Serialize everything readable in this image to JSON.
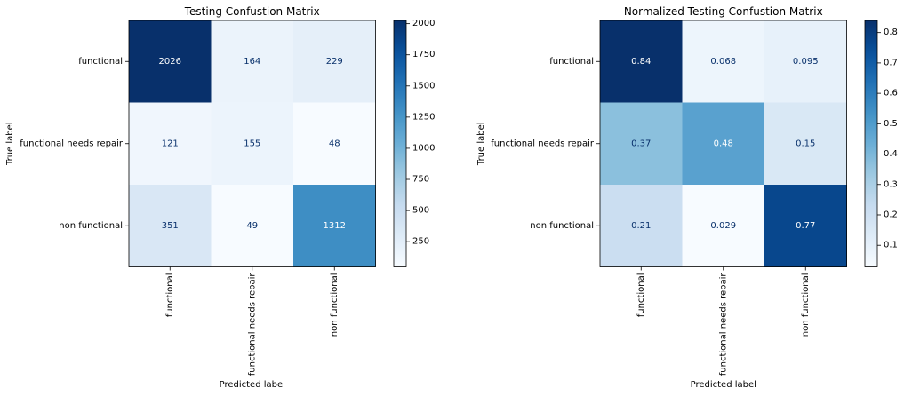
{
  "chart_data": [
    {
      "type": "heatmap",
      "title": "Testing Confustion Matrix",
      "xlabel": "Predicted label",
      "ylabel": "True label",
      "x_categories": [
        "functional",
        "functional needs repair",
        "non functional"
      ],
      "y_categories": [
        "functional",
        "functional needs repair",
        "non functional"
      ],
      "values": [
        [
          2026,
          164,
          229
        ],
        [
          121,
          155,
          48
        ],
        [
          351,
          49,
          1312
        ]
      ],
      "value_labels": [
        [
          "2026",
          "164",
          "229"
        ],
        [
          "121",
          "155",
          "48"
        ],
        [
          "351",
          "49",
          "1312"
        ]
      ],
      "colormap": "Blues",
      "color_range": [
        48,
        2026
      ],
      "colorbar_ticks": [
        250,
        500,
        750,
        1000,
        1250,
        1500,
        1750,
        2000
      ],
      "colorbar_tick_labels": [
        "250",
        "500",
        "750",
        "1000",
        "1250",
        "1500",
        "1750",
        "2000"
      ]
    },
    {
      "type": "heatmap",
      "title": "Normalized Testing Confustion Matrix",
      "xlabel": "Predicted label",
      "ylabel": "True label",
      "x_categories": [
        "functional",
        "functional needs repair",
        "non functional"
      ],
      "y_categories": [
        "functional",
        "functional needs repair",
        "non functional"
      ],
      "values": [
        [
          0.84,
          0.068,
          0.095
        ],
        [
          0.37,
          0.48,
          0.15
        ],
        [
          0.21,
          0.029,
          0.77
        ]
      ],
      "value_labels": [
        [
          "0.84",
          "0.068",
          "0.095"
        ],
        [
          "0.37",
          "0.48",
          "0.15"
        ],
        [
          "0.21",
          "0.029",
          "0.77"
        ]
      ],
      "colormap": "Blues",
      "color_range": [
        0.029,
        0.84
      ],
      "colorbar_ticks": [
        0.1,
        0.2,
        0.3,
        0.4,
        0.5,
        0.6,
        0.7,
        0.8
      ],
      "colorbar_tick_labels": [
        "0.1",
        "0.2",
        "0.3",
        "0.4",
        "0.5",
        "0.6",
        "0.7",
        "0.8"
      ]
    }
  ]
}
